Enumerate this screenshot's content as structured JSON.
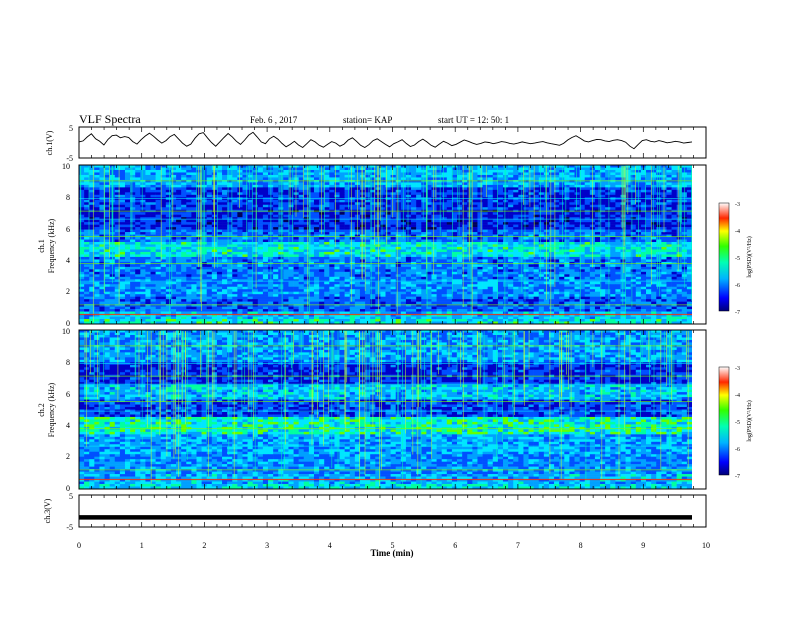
{
  "header": {
    "title": "VLF Spectra",
    "date": "Feb. 6 , 2017",
    "station": "station= KAP",
    "start": "start  UT =    12: 50: 1"
  },
  "chart_data": [
    {
      "type": "line",
      "panel": "ch1-waveform",
      "ylabel": "ch.1(V)",
      "ylim": [
        -5,
        5
      ],
      "yticks": [
        "5",
        "-5"
      ],
      "xlim": [
        0,
        10
      ],
      "series": [
        {
          "values": [
            0.2,
            0.5,
            1.8,
            2.8,
            1.2,
            0.4,
            -0.8,
            1.0,
            2.2,
            2.4,
            1.5,
            1.9,
            1.6,
            0.3,
            -0.5,
            0.9,
            2.1,
            3.0,
            2.0,
            0.8,
            -0.2,
            0.6,
            1.9,
            2.6,
            1.2,
            -0.2,
            -1.2,
            -0.5,
            1.4,
            2.8,
            3.2,
            1.5,
            0.0,
            -1.2,
            0.2,
            1.6,
            2.9,
            1.8,
            0.4,
            -0.6,
            0.8,
            2.4,
            3.3,
            1.8,
            0.2,
            -0.4,
            1.2,
            2.0,
            1.1,
            -0.3,
            -1.4,
            -0.6,
            0.4,
            -0.8,
            -1.6,
            -0.4,
            0.9,
            0.2,
            -0.9,
            -1.5,
            -0.6,
            0.3,
            -0.2,
            -1.2,
            -0.5,
            0.8,
            1.5,
            0.4,
            -0.9,
            -1.6,
            -0.7,
            0.6,
            1.2,
            0.3,
            -0.6,
            -1.4,
            -0.4,
            0.2,
            0.9,
            -0.3,
            -1.3,
            -0.8,
            0.3,
            1.1,
            0.2,
            -0.9,
            -1.5,
            -0.5,
            0.4,
            -0.2,
            -1.0,
            -0.6,
            0.1,
            0.8,
            0.4,
            -0.2,
            -0.6,
            -0.3,
            0.2,
            0.0,
            -0.4,
            -0.1,
            0.3,
            0.1,
            -0.3,
            -0.5,
            -0.2,
            0.2,
            -0.1,
            -0.4,
            -0.2,
            0.1,
            0.3,
            -0.1,
            -0.4,
            -0.6,
            -0.9,
            -0.3,
            0.8,
            1.6,
            2.2,
            1.4,
            0.5,
            0.2,
            0.6,
            1.0,
            0.9,
            0.5,
            0.3,
            0.7,
            0.9,
            0.6,
            0.1,
            -1.2,
            -2.0,
            -0.6,
            0.6,
            0.9,
            0.4,
            0.2,
            0.6,
            0.3,
            -0.1,
            0.1,
            0.4,
            0.2,
            -0.2,
            0.0,
            0.2
          ]
        }
      ]
    },
    {
      "type": "heatmap",
      "panel": "ch1-spectrogram",
      "ylabel": "ch.1\nFrequency  (kHz)",
      "ylim": [
        0,
        10
      ],
      "yticks": [
        "0",
        "2",
        "4",
        "6",
        "8",
        "10"
      ],
      "xlim": [
        0,
        10
      ],
      "colorbar": {
        "label": "log(PSD)(V²/Hz)",
        "range": [
          -7,
          -3
        ],
        "ticks": [
          "-3",
          "-4",
          "-5",
          "-6",
          "-7"
        ]
      }
    },
    {
      "type": "heatmap",
      "panel": "ch2-spectrogram",
      "ylabel": "ch.2\nFrequency  (kHz)",
      "ylim": [
        0,
        10
      ],
      "yticks": [
        "0",
        "2",
        "4",
        "6",
        "8",
        "10"
      ],
      "xlim": [
        0,
        10
      ],
      "colorbar": {
        "label": "log(PSD)(V²/Hz)",
        "range": [
          -7,
          -3
        ],
        "ticks": [
          "-3",
          "-4",
          "-5",
          "-6",
          "-7"
        ]
      }
    },
    {
      "type": "line",
      "panel": "ch3-waveform",
      "ylabel": "ch.3(V)",
      "ylim": [
        -5,
        5
      ],
      "yticks": [
        "5",
        "-5"
      ],
      "xlim": [
        0,
        10
      ],
      "xlabel": "Time  (min)",
      "xticks": [
        "0",
        "1",
        "2",
        "3",
        "4",
        "5",
        "6",
        "7",
        "8",
        "9",
        "10"
      ],
      "series": [
        {
          "values": [
            -2,
            -2
          ]
        }
      ]
    }
  ]
}
